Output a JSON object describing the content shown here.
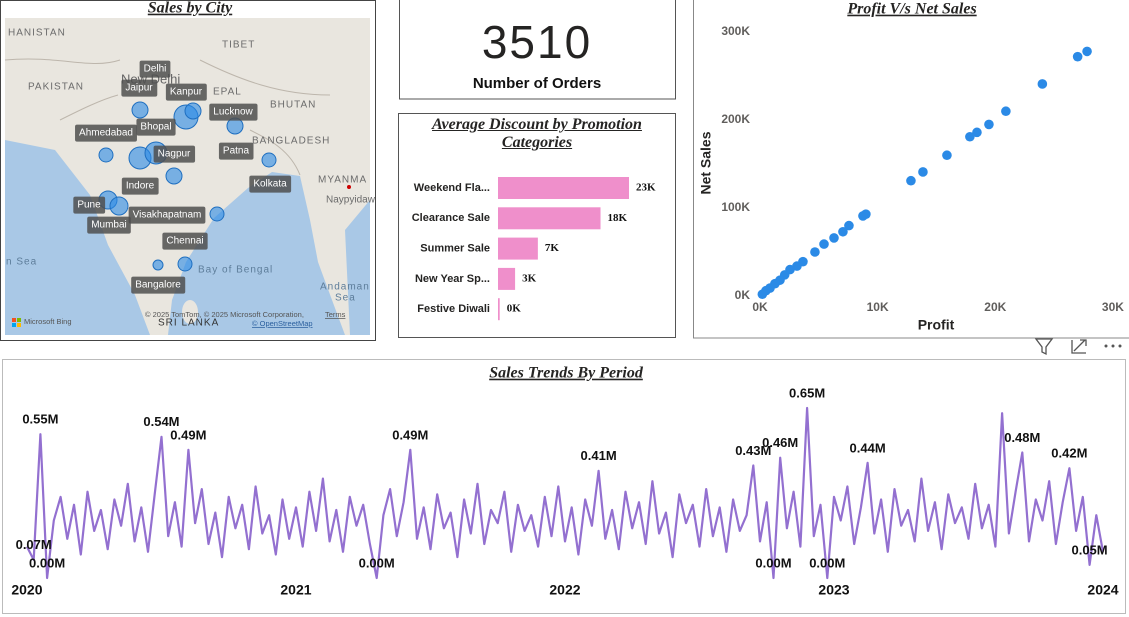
{
  "map": {
    "title": "Sales by City",
    "labels": [
      "HANISTAN",
      "PAKISTAN",
      "TIBET",
      "New Delhi",
      "EPAL",
      "BHUTAN",
      "BANGLADESH",
      "MYANMA",
      "Naypyidaw",
      "n Sea",
      "Bay of Bengal",
      "Andaman",
      "Sea",
      "SRI LANKA"
    ],
    "cities": [
      "Delhi",
      "Jaipur",
      "Kanpur",
      "Lucknow",
      "Ahmedabad",
      "Bhopal",
      "Nagpur",
      "Patna",
      "Indore",
      "Kolkata",
      "Pune",
      "Mumbai",
      "Visakhapatnam",
      "Chennai",
      "Bangalore"
    ],
    "attribution": "© 2025 TomTom, © 2025 Microsoft Corporation,",
    "terms": "Terms",
    "osm": "© OpenStreetMap",
    "provider": "Microsoft Bing"
  },
  "kpi": {
    "value": 3510,
    "label": "Number of Orders"
  },
  "chart_data": [
    {
      "type": "bar",
      "title": "Average Discount by Promotion Categories",
      "categories": [
        "Weekend Fla...",
        "Clearance Sale",
        "Summer Sale",
        "New Year Sp...",
        "Festive Diwali"
      ],
      "values": [
        23,
        18,
        7,
        3,
        0.3
      ],
      "value_labels": [
        "23K",
        "18K",
        "7K",
        "3K",
        "0K"
      ],
      "color": "#ef8fcb"
    },
    {
      "type": "scatter",
      "title": "Profit V/s Net Sales",
      "x_label": "Profit",
      "y_label": "Net Sales",
      "color": "#2b8ae6",
      "x": [
        27800,
        27000,
        24000,
        20900,
        19460,
        18440,
        17840,
        15890,
        13850,
        12830,
        9000,
        8750,
        7560,
        7050,
        6290,
        5440,
        4670,
        3650,
        3140,
        2550,
        2100,
        1700,
        1270,
        850,
        500,
        200
      ],
      "values": [
        278000,
        272000,
        241000,
        210000,
        195000,
        186000,
        181000,
        160000,
        141000,
        131000,
        93000,
        91000,
        80000,
        73000,
        66000,
        59000,
        50000,
        39000,
        34000,
        30000,
        24000,
        18000,
        14000,
        9000,
        6000,
        2000
      ],
      "xlim": [
        0,
        30600
      ],
      "ylim": [
        0,
        308000
      ],
      "xticks": [
        {
          "value": 0,
          "label": "0K"
        },
        {
          "value": 10000,
          "label": "10K"
        },
        {
          "value": 20000,
          "label": "20K"
        },
        {
          "value": 30000,
          "label": "30K"
        }
      ],
      "yticks": [
        {
          "value": 0,
          "label": "0K"
        },
        {
          "value": 100000,
          "label": "100K"
        },
        {
          "value": 200000,
          "label": "200K"
        },
        {
          "value": 300000,
          "label": "300K"
        }
      ]
    },
    {
      "type": "line",
      "title": "Sales Trends By Period",
      "color": "#9370d0",
      "xlim": [
        2019.937,
        2024.026
      ],
      "xticks": [
        2020,
        2021,
        2022,
        2023,
        2024
      ],
      "x": [
        2020,
        2020.025,
        2020.05,
        2020.075,
        2020.1,
        2020.125,
        2020.15,
        2020.175,
        2020.2,
        2020.225,
        2020.25,
        2020.275,
        2020.3,
        2020.325,
        2020.35,
        2020.375,
        2020.4,
        2020.425,
        2020.45,
        2020.475,
        2020.5,
        2020.525,
        2020.55,
        2020.575,
        2020.6,
        2020.625,
        2020.65,
        2020.675,
        2020.7,
        2020.725,
        2020.75,
        2020.775,
        2020.8,
        2020.825,
        2020.85,
        2020.875,
        2020.9,
        2020.925,
        2020.95,
        2020.975,
        2021,
        2021.025,
        2021.05,
        2021.075,
        2021.1,
        2021.125,
        2021.15,
        2021.175,
        2021.2,
        2021.225,
        2021.25,
        2021.275,
        2021.3,
        2021.325,
        2021.35,
        2021.375,
        2021.4,
        2021.425,
        2021.45,
        2021.475,
        2021.5,
        2021.525,
        2021.55,
        2021.575,
        2021.6,
        2021.625,
        2021.65,
        2021.675,
        2021.7,
        2021.725,
        2021.75,
        2021.775,
        2021.8,
        2021.825,
        2021.85,
        2021.875,
        2021.9,
        2021.925,
        2021.95,
        2021.975,
        2022,
        2022.025,
        2022.05,
        2022.075,
        2022.1,
        2022.125,
        2022.15,
        2022.175,
        2022.2,
        2022.225,
        2022.25,
        2022.275,
        2022.3,
        2022.325,
        2022.35,
        2022.375,
        2022.4,
        2022.425,
        2022.45,
        2022.475,
        2022.5,
        2022.525,
        2022.55,
        2022.575,
        2022.6,
        2022.625,
        2022.65,
        2022.675,
        2022.7,
        2022.725,
        2022.75,
        2022.775,
        2022.8,
        2022.825,
        2022.85,
        2022.875,
        2022.9,
        2022.925,
        2022.95,
        2022.975,
        2023,
        2023.025,
        2023.05,
        2023.075,
        2023.1,
        2023.125,
        2023.15,
        2023.175,
        2023.2,
        2023.225,
        2023.25,
        2023.275,
        2023.3,
        2023.325,
        2023.35,
        2023.375,
        2023.4,
        2023.425,
        2023.45,
        2023.475,
        2023.5,
        2023.525,
        2023.55,
        2023.575,
        2023.6,
        2023.625,
        2023.65,
        2023.675,
        2023.7,
        2023.725,
        2023.75,
        2023.775,
        2023.8,
        2023.825,
        2023.85,
        2023.875,
        2023.9,
        2023.925,
        2023.95,
        2023.975,
        2024
      ],
      "values": [
        0.12,
        0.07,
        0.55,
        0,
        0.22,
        0.31,
        0.15,
        0.28,
        0.09,
        0.33,
        0.18,
        0.26,
        0.11,
        0.3,
        0.2,
        0.36,
        0.14,
        0.27,
        0.1,
        0.32,
        0.54,
        0.16,
        0.29,
        0.12,
        0.49,
        0.21,
        0.34,
        0.13,
        0.25,
        0.08,
        0.31,
        0.19,
        0.28,
        0.11,
        0.35,
        0.17,
        0.24,
        0.09,
        0.3,
        0.15,
        0.27,
        0.12,
        0.33,
        0.18,
        0.38,
        0.14,
        0.26,
        0.1,
        0.31,
        0.2,
        0.28,
        0.13,
        0,
        0.24,
        0.34,
        0.16,
        0.29,
        0.49,
        0.15,
        0.27,
        0.11,
        0.32,
        0.19,
        0.25,
        0.08,
        0.3,
        0.17,
        0.36,
        0.13,
        0.26,
        0.21,
        0.33,
        0.1,
        0.28,
        0.18,
        0.24,
        0.12,
        0.31,
        0.16,
        0.35,
        0.14,
        0.27,
        0.09,
        0.3,
        0.2,
        0.41,
        0.15,
        0.26,
        0.11,
        0.33,
        0.19,
        0.29,
        0.13,
        0.37,
        0.17,
        0.25,
        0.08,
        0.32,
        0.21,
        0.28,
        0.12,
        0.34,
        0.16,
        0.27,
        0.1,
        0.3,
        0.18,
        0.24,
        0.43,
        0.14,
        0.29,
        0,
        0.46,
        0.19,
        0.33,
        0.12,
        0.65,
        0.16,
        0.28,
        0,
        0.31,
        0.22,
        0.35,
        0.13,
        0.27,
        0.44,
        0.17,
        0.3,
        0.1,
        0.34,
        0.2,
        0.26,
        0.14,
        0.38,
        0.18,
        0.29,
        0.11,
        0.32,
        0.21,
        0.27,
        0.15,
        0.36,
        0.19,
        0.28,
        0.12,
        0.63,
        0.17,
        0.33,
        0.48,
        0.14,
        0.3,
        0.22,
        0.37,
        0.13,
        0.29,
        0.42,
        0.18,
        0.31,
        0.05,
        0.24,
        0.1
      ],
      "value_labels": [
        null,
        "0.07M",
        "0.55M",
        "0.00M",
        null,
        null,
        null,
        null,
        null,
        null,
        null,
        null,
        null,
        null,
        null,
        null,
        null,
        null,
        null,
        null,
        "0.54M",
        null,
        null,
        null,
        "0.49M",
        null,
        null,
        null,
        null,
        null,
        null,
        null,
        null,
        null,
        null,
        null,
        null,
        null,
        null,
        null,
        null,
        null,
        null,
        null,
        null,
        null,
        null,
        null,
        null,
        null,
        null,
        null,
        "0.00M",
        null,
        null,
        null,
        null,
        "0.49M",
        null,
        null,
        null,
        null,
        null,
        null,
        null,
        null,
        null,
        null,
        null,
        null,
        null,
        null,
        null,
        null,
        null,
        null,
        null,
        null,
        null,
        null,
        null,
        null,
        null,
        null,
        null,
        "0.41M",
        null,
        null,
        null,
        null,
        null,
        null,
        null,
        null,
        null,
        null,
        null,
        null,
        null,
        null,
        null,
        null,
        null,
        null,
        null,
        null,
        null,
        null,
        "0.43M",
        null,
        null,
        "0.00M",
        "0.46M",
        null,
        null,
        null,
        "0.65M",
        null,
        null,
        "0.00M",
        null,
        null,
        null,
        null,
        null,
        "0.44M",
        null,
        null,
        null,
        null,
        null,
        null,
        null,
        null,
        null,
        null,
        null,
        null,
        null,
        null,
        null,
        null,
        null,
        null,
        null,
        null,
        null,
        null,
        "0.48M",
        null,
        null,
        null,
        null,
        null,
        null,
        "0.42M",
        null,
        null,
        "0.05M",
        null,
        null
      ]
    }
  ]
}
